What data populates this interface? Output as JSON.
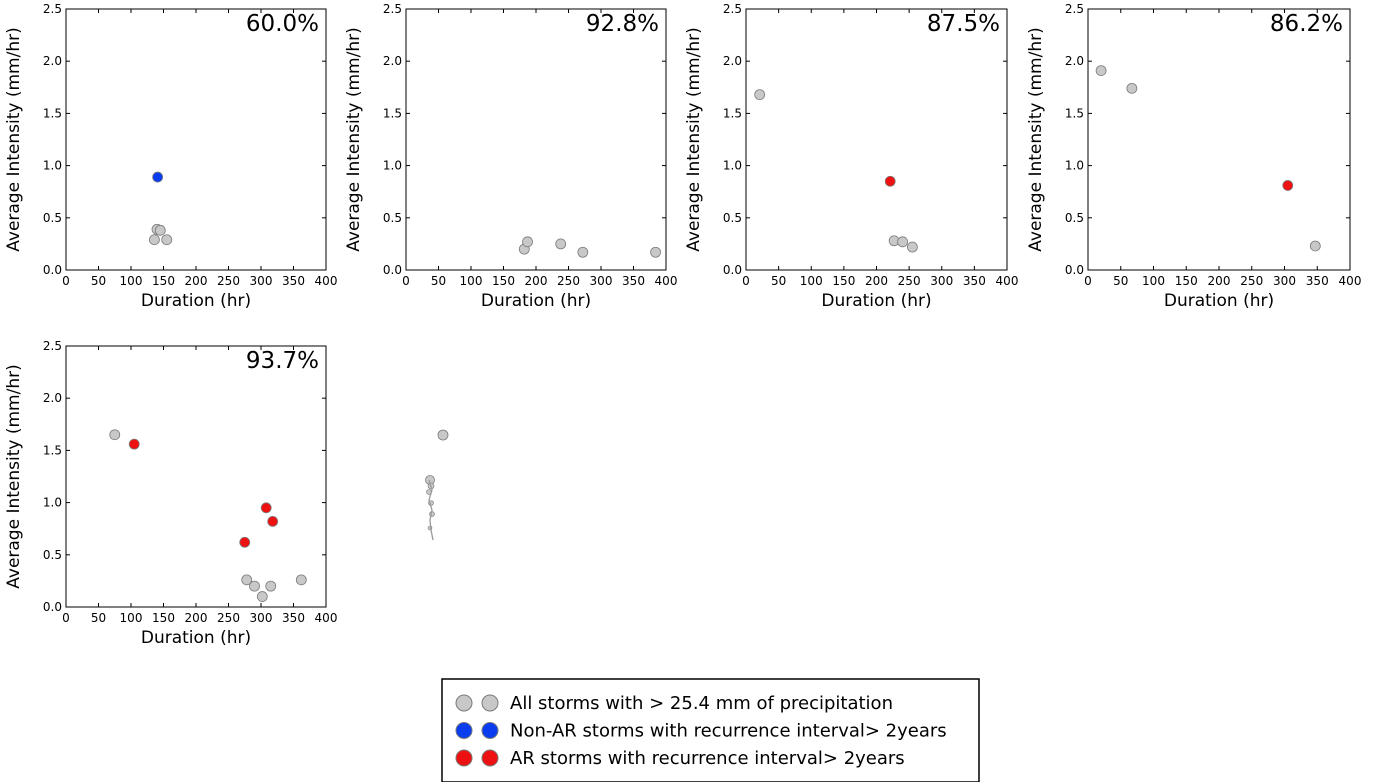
{
  "chart_data": [
    {
      "type": "scatter",
      "annotation": "60.0%",
      "xlabel": "Duration (hr)",
      "ylabel": "Average Intensity (mm/hr)",
      "xlim": [
        0,
        400
      ],
      "ylim": [
        0,
        2.5
      ],
      "xticks": [
        "0",
        "50",
        "100",
        "150",
        "200",
        "250",
        "300",
        "350",
        "400"
      ],
      "yticks": [
        "0.0",
        "0.5",
        "1.0",
        "1.5",
        "2.0",
        "2.5"
      ],
      "series": [
        {
          "key": "all",
          "points": [
            [
              136,
              0.29
            ],
            [
              140,
              0.39
            ],
            [
              145,
              0.38
            ],
            [
              155,
              0.29
            ]
          ]
        },
        {
          "key": "nonar",
          "points": [
            [
              141,
              0.89
            ]
          ]
        },
        {
          "key": "ar",
          "points": []
        }
      ]
    },
    {
      "type": "scatter",
      "annotation": "92.8%",
      "xlabel": "Duration (hr)",
      "ylabel": "Average Intensity (mm/hr)",
      "xlim": [
        0,
        400
      ],
      "ylim": [
        0,
        2.5
      ],
      "xticks": [
        "0",
        "50",
        "100",
        "150",
        "200",
        "250",
        "300",
        "350",
        "400"
      ],
      "yticks": [
        "0.0",
        "0.5",
        "1.0",
        "1.5",
        "2.0",
        "2.5"
      ],
      "series": [
        {
          "key": "all",
          "points": [
            [
              182,
              0.2
            ],
            [
              187,
              0.27
            ],
            [
              238,
              0.25
            ],
            [
              272,
              0.17
            ],
            [
              384,
              0.17
            ]
          ]
        },
        {
          "key": "nonar",
          "points": []
        },
        {
          "key": "ar",
          "points": []
        }
      ]
    },
    {
      "type": "scatter",
      "annotation": "87.5%",
      "xlabel": "Duration (hr)",
      "ylabel": "Average Intensity (mm/hr)",
      "xlim": [
        0,
        400
      ],
      "ylim": [
        0,
        2.5
      ],
      "xticks": [
        "0",
        "50",
        "100",
        "150",
        "200",
        "250",
        "300",
        "350",
        "400"
      ],
      "yticks": [
        "0.0",
        "0.5",
        "1.0",
        "1.5",
        "2.0",
        "2.5"
      ],
      "series": [
        {
          "key": "all",
          "points": [
            [
              21,
              1.68
            ],
            [
              227,
              0.28
            ],
            [
              240,
              0.27
            ],
            [
              255,
              0.22
            ]
          ]
        },
        {
          "key": "nonar",
          "points": []
        },
        {
          "key": "ar",
          "points": [
            [
              221,
              0.85
            ]
          ]
        }
      ]
    },
    {
      "type": "scatter",
      "annotation": "86.2%",
      "xlabel": "Duration (hr)",
      "ylabel": "Average Intensity (mm/hr)",
      "xlim": [
        0,
        400
      ],
      "ylim": [
        0,
        2.5
      ],
      "xticks": [
        "0",
        "50",
        "100",
        "150",
        "200",
        "250",
        "300",
        "350",
        "400"
      ],
      "yticks": [
        "0.0",
        "0.5",
        "1.0",
        "1.5",
        "2.0",
        "2.5"
      ],
      "series": [
        {
          "key": "all",
          "points": [
            [
              20,
              1.91
            ],
            [
              67,
              1.74
            ],
            [
              347,
              0.23
            ]
          ]
        },
        {
          "key": "nonar",
          "points": []
        },
        {
          "key": "ar",
          "points": [
            [
              305,
              0.81
            ]
          ]
        }
      ]
    },
    {
      "type": "scatter",
      "annotation": "93.7%",
      "xlabel": "Duration (hr)",
      "ylabel": "Average Intensity (mm/hr)",
      "xlim": [
        0,
        400
      ],
      "ylim": [
        0,
        2.5
      ],
      "xticks": [
        "0",
        "50",
        "100",
        "150",
        "200",
        "250",
        "300",
        "350",
        "400"
      ],
      "yticks": [
        "0.0",
        "0.5",
        "1.0",
        "1.5",
        "2.0",
        "2.5"
      ],
      "series": [
        {
          "key": "all",
          "points": [
            [
              75,
              1.65
            ],
            [
              278,
              0.26
            ],
            [
              290,
              0.2
            ],
            [
              302,
              0.1
            ],
            [
              315,
              0.2
            ],
            [
              362,
              0.26
            ]
          ]
        },
        {
          "key": "nonar",
          "points": []
        },
        {
          "key": "ar",
          "points": [
            [
              105,
              1.56
            ],
            [
              275,
              0.62
            ],
            [
              308,
              0.95
            ],
            [
              318,
              0.82
            ]
          ]
        }
      ]
    }
  ],
  "legend": {
    "items": [
      {
        "key": "all",
        "label": "All storms with > 25.4 mm of precipitation",
        "color": "#c8c8c8"
      },
      {
        "key": "nonar",
        "label": "Non-AR storms with recurrence interval> 2years",
        "color": "#0a3cf0"
      },
      {
        "key": "ar",
        "label": "AR storms with recurrence interval> 2years",
        "color": "#ee1111"
      }
    ]
  },
  "colors": {
    "all": "#c8c8c8",
    "nonar": "#0a3cf0",
    "ar": "#ee1111",
    "edge": "#7a7a7a"
  }
}
